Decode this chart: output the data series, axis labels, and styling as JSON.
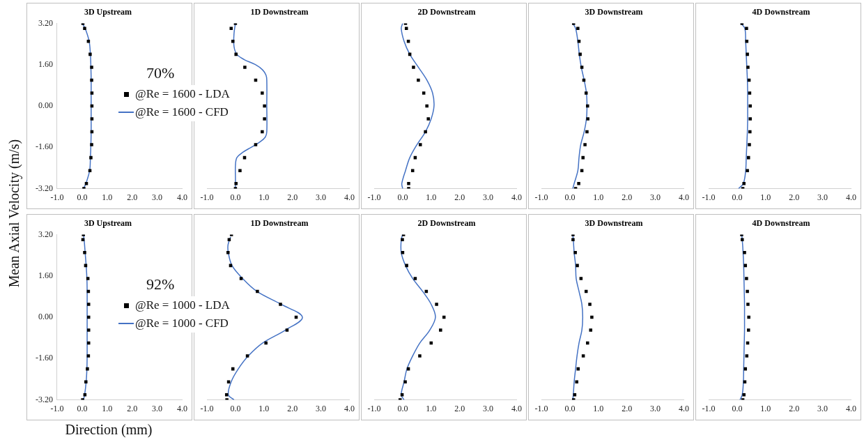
{
  "chart_data": [
    {
      "type": "scatter",
      "title": "3D Upstream",
      "ylabel": "Mean Axial Velocity (m/s)",
      "legend": "right",
      "annotations": [
        "70%"
      ],
      "xlim": [
        -1,
        4
      ],
      "xticks": [
        {
          "value": -1,
          "label": "-1.0"
        },
        {
          "value": 0,
          "label": "0.0"
        },
        {
          "value": 1,
          "label": "1.0"
        },
        {
          "value": 2,
          "label": "2.0"
        },
        {
          "value": 3,
          "label": "3.0"
        },
        {
          "value": 4,
          "label": "4.0"
        }
      ],
      "ylim": [
        -3.2,
        3.2
      ],
      "yticks": [
        {
          "value": -3.2,
          "label": "-3.20"
        },
        {
          "value": -1.6,
          "label": "-1.60"
        },
        {
          "value": 0,
          "label": "0.00"
        },
        {
          "value": 1.6,
          "label": "1.60"
        },
        {
          "value": 3.2,
          "label": "3.20"
        }
      ],
      "series": [
        {
          "name": "@Re = 1600 - LDA",
          "type": "scatter",
          "marker": "square",
          "color": "#000000",
          "x": [
            0.03,
            0.1,
            0.25,
            0.32,
            0.38,
            0.38,
            0.39,
            0.39,
            0.39,
            0.39,
            0.38,
            0.35,
            0.31,
            0.17,
            0.07
          ],
          "values": [
            3.2,
            3.0,
            2.5,
            2.0,
            1.5,
            1.0,
            0.5,
            0,
            -0.5,
            -1.0,
            -1.5,
            -2.0,
            -2.5,
            -3.0,
            -3.2
          ]
        },
        {
          "name": "@Re = 1600 - CFD",
          "type": "line",
          "marker": "none",
          "color": "#4472c4",
          "x": [
            0.0,
            0.12,
            0.28,
            0.33,
            0.35,
            0.36,
            0.36,
            0.36,
            0.36,
            0.36,
            0.35,
            0.33,
            0.3,
            0.15,
            0.05
          ],
          "values": [
            3.2,
            3.0,
            2.5,
            2.0,
            1.5,
            1.0,
            0.5,
            0,
            -0.5,
            -1.0,
            -1.5,
            -2.0,
            -2.5,
            -3.0,
            -3.2
          ]
        }
      ]
    },
    {
      "type": "scatter",
      "title": "1D Downstream",
      "tick_labels": "x",
      "xlim": [
        -1,
        4
      ],
      "xticks": [
        {
          "value": -1,
          "label": "-1.0"
        },
        {
          "value": 0,
          "label": "0.0"
        },
        {
          "value": 1,
          "label": "1.0"
        },
        {
          "value": 2,
          "label": "2.0"
        },
        {
          "value": 3,
          "label": "3.0"
        },
        {
          "value": 4,
          "label": "4.0"
        }
      ],
      "ylim": [
        -3.2,
        3.2
      ],
      "series": [
        {
          "type": "scatter",
          "marker": "square",
          "color": "#000000",
          "x": [
            0.0,
            -0.15,
            -0.09,
            0.02,
            0.33,
            0.71,
            0.94,
            1.02,
            1.02,
            0.94,
            0.71,
            0.32,
            0.16,
            0.02,
            0.0
          ],
          "values": [
            3.2,
            3.0,
            2.5,
            2.0,
            1.5,
            1.0,
            0.5,
            0,
            -0.5,
            -1.0,
            -1.5,
            -2.0,
            -2.5,
            -3.0,
            -3.2
          ]
        },
        {
          "type": "line",
          "marker": "none",
          "color": "#4472c4",
          "x": [
            0.0,
            -0.05,
            -0.05,
            0.05,
            0.3,
            0.7,
            0.95,
            1.07,
            1.1,
            1.1,
            1.1,
            1.05,
            0.85,
            0.55,
            0.25,
            0.05,
            0.0,
            0.0,
            0.0
          ],
          "values": [
            3.2,
            2.8,
            2.3,
            2.0,
            1.8,
            1.6,
            1.4,
            1.2,
            1.0,
            0,
            -1.0,
            -1.2,
            -1.4,
            -1.6,
            -1.8,
            -2.0,
            -2.3,
            -2.8,
            -3.2
          ]
        }
      ]
    },
    {
      "type": "scatter",
      "title": "2D Downstream",
      "tick_labels": "x",
      "xlim": [
        -1,
        4
      ],
      "xticks": [
        {
          "value": -1,
          "label": "-1.0"
        },
        {
          "value": 0,
          "label": "0.0"
        },
        {
          "value": 1,
          "label": "1.0"
        },
        {
          "value": 2,
          "label": "2.0"
        },
        {
          "value": 3,
          "label": "3.0"
        },
        {
          "value": 4,
          "label": "4.0"
        }
      ],
      "ylim": [
        -3.2,
        3.2
      ],
      "series": [
        {
          "type": "scatter",
          "marker": "square",
          "color": "#000000",
          "x": [
            0.1,
            0.13,
            0.2,
            0.25,
            0.38,
            0.55,
            0.74,
            0.85,
            0.9,
            0.8,
            0.62,
            0.44,
            0.35,
            0.21,
            0.21
          ],
          "values": [
            3.2,
            3.0,
            2.5,
            2.0,
            1.5,
            1.0,
            0.5,
            0,
            -0.5,
            -1.0,
            -1.5,
            -2.0,
            -2.5,
            -3.0,
            -3.2
          ]
        },
        {
          "type": "line",
          "marker": "none",
          "color": "#4472c4",
          "x": [
            0.0,
            -0.05,
            0.05,
            0.25,
            0.55,
            0.85,
            1.05,
            1.1,
            1.0,
            0.8,
            0.5,
            0.25,
            0.1,
            -0.03,
            0.0
          ],
          "values": [
            3.2,
            3.0,
            2.5,
            2.0,
            1.5,
            1.0,
            0.5,
            0,
            -0.5,
            -1.0,
            -1.5,
            -2.0,
            -2.5,
            -3.0,
            -3.2
          ]
        }
      ]
    },
    {
      "type": "scatter",
      "title": "3D Downstream",
      "tick_labels": "x",
      "xlim": [
        -1,
        4
      ],
      "xticks": [
        {
          "value": -1,
          "label": "-1.0"
        },
        {
          "value": 0,
          "label": "0.0"
        },
        {
          "value": 1,
          "label": "1.0"
        },
        {
          "value": 2,
          "label": "2.0"
        },
        {
          "value": 3,
          "label": "3.0"
        },
        {
          "value": 4,
          "label": "4.0"
        }
      ],
      "ylim": [
        -3.2,
        3.2
      ],
      "series": [
        {
          "type": "scatter",
          "marker": "square",
          "color": "#000000",
          "x": [
            0.13,
            0.28,
            0.32,
            0.36,
            0.42,
            0.49,
            0.57,
            0.62,
            0.63,
            0.6,
            0.53,
            0.46,
            0.42,
            0.31,
            0.2
          ],
          "values": [
            3.2,
            3.0,
            2.5,
            2.0,
            1.5,
            1.0,
            0.5,
            0,
            -0.5,
            -1.0,
            -1.5,
            -2.0,
            -2.5,
            -3.0,
            -3.2
          ]
        },
        {
          "type": "line",
          "marker": "none",
          "color": "#4472c4",
          "x": [
            0.1,
            0.2,
            0.28,
            0.33,
            0.4,
            0.5,
            0.58,
            0.6,
            0.58,
            0.5,
            0.38,
            0.32,
            0.28,
            0.15,
            0.1
          ],
          "values": [
            3.2,
            3.0,
            2.5,
            2.0,
            1.5,
            1.0,
            0.5,
            0,
            -0.5,
            -1.0,
            -1.5,
            -2.0,
            -2.5,
            -3.0,
            -3.2
          ]
        }
      ]
    },
    {
      "type": "scatter",
      "title": "4D Downstream",
      "tick_labels": "x",
      "xlim": [
        -1,
        4
      ],
      "xticks": [
        {
          "value": -1,
          "label": "-1.0"
        },
        {
          "value": 0,
          "label": "0.0"
        },
        {
          "value": 1,
          "label": "1.0"
        },
        {
          "value": 2,
          "label": "2.0"
        },
        {
          "value": 3,
          "label": "3.0"
        },
        {
          "value": 4,
          "label": "4.0"
        }
      ],
      "ylim": [
        -3.2,
        3.2
      ],
      "series": [
        {
          "type": "scatter",
          "marker": "square",
          "color": "#000000",
          "x": [
            0.17,
            0.33,
            0.34,
            0.36,
            0.38,
            0.42,
            0.44,
            0.46,
            0.46,
            0.45,
            0.43,
            0.4,
            0.36,
            0.24,
            0.2
          ],
          "values": [
            3.2,
            3.0,
            2.5,
            2.0,
            1.5,
            1.0,
            0.5,
            0,
            -0.5,
            -1.0,
            -1.5,
            -2.0,
            -2.5,
            -3.0,
            -3.2
          ]
        },
        {
          "type": "line",
          "marker": "none",
          "color": "#4472c4",
          "x": [
            0.13,
            0.27,
            0.3,
            0.32,
            0.34,
            0.36,
            0.37,
            0.37,
            0.37,
            0.36,
            0.34,
            0.32,
            0.3,
            0.22,
            0.05
          ],
          "values": [
            3.2,
            3.0,
            2.5,
            2.0,
            1.5,
            1.0,
            0.5,
            0,
            -0.5,
            -1.0,
            -1.5,
            -2.0,
            -2.5,
            -3.0,
            -3.2
          ]
        }
      ]
    },
    {
      "type": "scatter",
      "title": "3D Upstream",
      "legend": "right",
      "annotations": [
        "92%"
      ],
      "xlim": [
        -1,
        4
      ],
      "xticks": [
        {
          "value": -1,
          "label": "-1.0"
        },
        {
          "value": 0,
          "label": "0.0"
        },
        {
          "value": 1,
          "label": "1.0"
        },
        {
          "value": 2,
          "label": "2.0"
        },
        {
          "value": 3,
          "label": "3.0"
        },
        {
          "value": 4,
          "label": "4.0"
        }
      ],
      "ylim": [
        -3.2,
        3.2
      ],
      "yticks": [
        {
          "value": -3.2,
          "label": "-3.20"
        },
        {
          "value": -1.6,
          "label": "-1.60"
        },
        {
          "value": 0,
          "label": "0.00"
        },
        {
          "value": 1.6,
          "label": "1.60"
        },
        {
          "value": 3.2,
          "label": "3.20"
        }
      ],
      "xlabel": "Direction (mm)",
      "series": [
        {
          "name": "@Re = 1000 - LDA",
          "type": "scatter",
          "marker": "square",
          "color": "#000000",
          "x": [
            0.05,
            0.03,
            0.1,
            0.14,
            0.23,
            0.25,
            0.26,
            0.26,
            0.26,
            0.26,
            0.25,
            0.21,
            0.15,
            0.11,
            0.02
          ],
          "values": [
            3.2,
            3.0,
            2.5,
            2.0,
            1.5,
            1.0,
            0.5,
            0,
            -0.5,
            -1.0,
            -1.5,
            -2.0,
            -2.5,
            -3.0,
            -3.2
          ]
        },
        {
          "name": "@Re = 1000 - CFD",
          "type": "line",
          "marker": "none",
          "color": "#4472c4",
          "x": [
            0.05,
            0.08,
            0.12,
            0.16,
            0.19,
            0.2,
            0.2,
            0.2,
            0.2,
            0.2,
            0.2,
            0.19,
            0.16,
            0.1,
            0.05
          ],
          "values": [
            3.2,
            3.0,
            2.5,
            2.0,
            1.5,
            1.0,
            0.5,
            0,
            -0.5,
            -1.0,
            -1.5,
            -2.0,
            -2.5,
            -3.0,
            -3.2
          ]
        }
      ]
    },
    {
      "type": "scatter",
      "title": "1D Downstream",
      "tick_labels": "x",
      "xlim": [
        -1,
        4
      ],
      "xticks": [
        {
          "value": -1,
          "label": "-1.0"
        },
        {
          "value": 0,
          "label": "0.0"
        },
        {
          "value": 1,
          "label": "1.0"
        },
        {
          "value": 2,
          "label": "2.0"
        },
        {
          "value": 3,
          "label": "3.0"
        },
        {
          "value": 4,
          "label": "4.0"
        }
      ],
      "ylim": [
        -3.2,
        3.2
      ],
      "series": [
        {
          "type": "scatter",
          "marker": "square",
          "color": "#000000",
          "x": [
            -0.14,
            -0.22,
            -0.26,
            -0.17,
            0.2,
            0.77,
            1.58,
            2.13,
            1.81,
            1.07,
            0.42,
            -0.09,
            -0.24,
            -0.31,
            -0.3
          ],
          "values": [
            3.2,
            3.0,
            2.5,
            2.0,
            1.5,
            1.0,
            0.5,
            0,
            -0.5,
            -1.0,
            -1.5,
            -2.0,
            -2.5,
            -3.0,
            -3.2
          ]
        },
        {
          "type": "line",
          "marker": "none",
          "color": "#4472c4",
          "x": [
            -0.17,
            -0.26,
            -0.25,
            -0.12,
            0.25,
            0.75,
            1.6,
            2.35,
            1.75,
            0.95,
            0.45,
            0.1,
            -0.15,
            -0.25,
            -0.05
          ],
          "values": [
            3.1,
            2.8,
            2.5,
            2.0,
            1.5,
            1.0,
            0.5,
            0,
            -0.5,
            -1.0,
            -1.5,
            -2.0,
            -2.5,
            -3.0,
            -3.2
          ]
        }
      ]
    },
    {
      "type": "scatter",
      "title": "2D Downstream",
      "tick_labels": "x",
      "xlim": [
        -1,
        4
      ],
      "xticks": [
        {
          "value": -1,
          "label": "-1.0"
        },
        {
          "value": 0,
          "label": "0.0"
        },
        {
          "value": 1,
          "label": "1.0"
        },
        {
          "value": 2,
          "label": "2.0"
        },
        {
          "value": 3,
          "label": "3.0"
        },
        {
          "value": 4,
          "label": "4.0"
        }
      ],
      "ylim": [
        -3.2,
        3.2
      ],
      "series": [
        {
          "type": "scatter",
          "marker": "square",
          "color": "#000000",
          "x": [
            0.03,
            -0.01,
            0.0,
            0.14,
            0.44,
            0.83,
            1.19,
            1.45,
            1.33,
            1.0,
            0.6,
            0.2,
            0.09,
            -0.02,
            -0.09
          ],
          "values": [
            3.2,
            3.0,
            2.5,
            2.0,
            1.5,
            1.0,
            0.5,
            0,
            -0.5,
            -1.0,
            -1.5,
            -2.0,
            -2.5,
            -3.0,
            -3.2
          ]
        },
        {
          "type": "line",
          "marker": "none",
          "color": "#4472c4",
          "x": [
            0.0,
            -0.05,
            -0.05,
            0.1,
            0.35,
            0.7,
            1.0,
            1.15,
            0.95,
            0.6,
            0.35,
            0.15,
            0.05,
            -0.05,
            0.05
          ],
          "values": [
            3.2,
            3.0,
            2.5,
            2.0,
            1.5,
            1.0,
            0.5,
            0,
            -0.5,
            -1.0,
            -1.5,
            -2.0,
            -2.5,
            -3.0,
            -3.2
          ]
        }
      ]
    },
    {
      "type": "scatter",
      "title": "3D Downstream",
      "tick_labels": "x",
      "xlim": [
        -1,
        4
      ],
      "xticks": [
        {
          "value": -1,
          "label": "-1.0"
        },
        {
          "value": 0,
          "label": "0.0"
        },
        {
          "value": 1,
          "label": "1.0"
        },
        {
          "value": 2,
          "label": "2.0"
        },
        {
          "value": 3,
          "label": "3.0"
        },
        {
          "value": 4,
          "label": "4.0"
        }
      ],
      "ylim": [
        -3.2,
        3.2
      ],
      "series": [
        {
          "type": "scatter",
          "marker": "square",
          "color": "#000000",
          "x": [
            0.11,
            0.11,
            0.19,
            0.26,
            0.39,
            0.57,
            0.7,
            0.77,
            0.73,
            0.62,
            0.47,
            0.29,
            0.24,
            0.17,
            0.13
          ],
          "values": [
            3.2,
            3.0,
            2.5,
            2.0,
            1.5,
            1.0,
            0.5,
            0,
            -0.5,
            -1.0,
            -1.5,
            -2.0,
            -2.5,
            -3.0,
            -3.2
          ]
        },
        {
          "type": "line",
          "marker": "none",
          "color": "#4472c4",
          "x": [
            0.1,
            0.12,
            0.15,
            0.2,
            0.22,
            0.32,
            0.42,
            0.45,
            0.42,
            0.32,
            0.25,
            0.2,
            0.15,
            0.12,
            0.1
          ],
          "values": [
            3.2,
            3.0,
            2.5,
            2.0,
            1.5,
            1.0,
            0.5,
            0,
            -0.5,
            -1.0,
            -1.5,
            -2.0,
            -2.5,
            -3.0,
            -3.2
          ]
        }
      ]
    },
    {
      "type": "scatter",
      "title": "4D Downstream",
      "tick_labels": "x",
      "xlim": [
        -1,
        4
      ],
      "xticks": [
        {
          "value": -1,
          "label": "-1.0"
        },
        {
          "value": 0,
          "label": "0.0"
        },
        {
          "value": 1,
          "label": "1.0"
        },
        {
          "value": 2,
          "label": "2.0"
        },
        {
          "value": 3,
          "label": "3.0"
        },
        {
          "value": 4,
          "label": "4.0"
        }
      ],
      "ylim": [
        -3.2,
        3.2
      ],
      "series": [
        {
          "type": "scatter",
          "marker": "square",
          "color": "#000000",
          "x": [
            0.16,
            0.18,
            0.26,
            0.29,
            0.33,
            0.36,
            0.38,
            0.41,
            0.4,
            0.37,
            0.34,
            0.29,
            0.27,
            0.24,
            0.2
          ],
          "values": [
            3.2,
            3.0,
            2.5,
            2.0,
            1.5,
            1.0,
            0.5,
            0,
            -0.5,
            -1.0,
            -1.5,
            -2.0,
            -2.5,
            -3.0,
            -3.2
          ]
        },
        {
          "type": "line",
          "marker": "none",
          "color": "#4472c4",
          "x": [
            0.16,
            0.18,
            0.21,
            0.23,
            0.24,
            0.25,
            0.26,
            0.26,
            0.26,
            0.25,
            0.24,
            0.23,
            0.22,
            0.18,
            0.1
          ],
          "values": [
            3.2,
            3.0,
            2.5,
            2.0,
            1.5,
            1.0,
            0.5,
            0,
            -0.5,
            -1.0,
            -1.5,
            -2.0,
            -2.5,
            -3.0,
            -3.2
          ]
        }
      ]
    }
  ]
}
